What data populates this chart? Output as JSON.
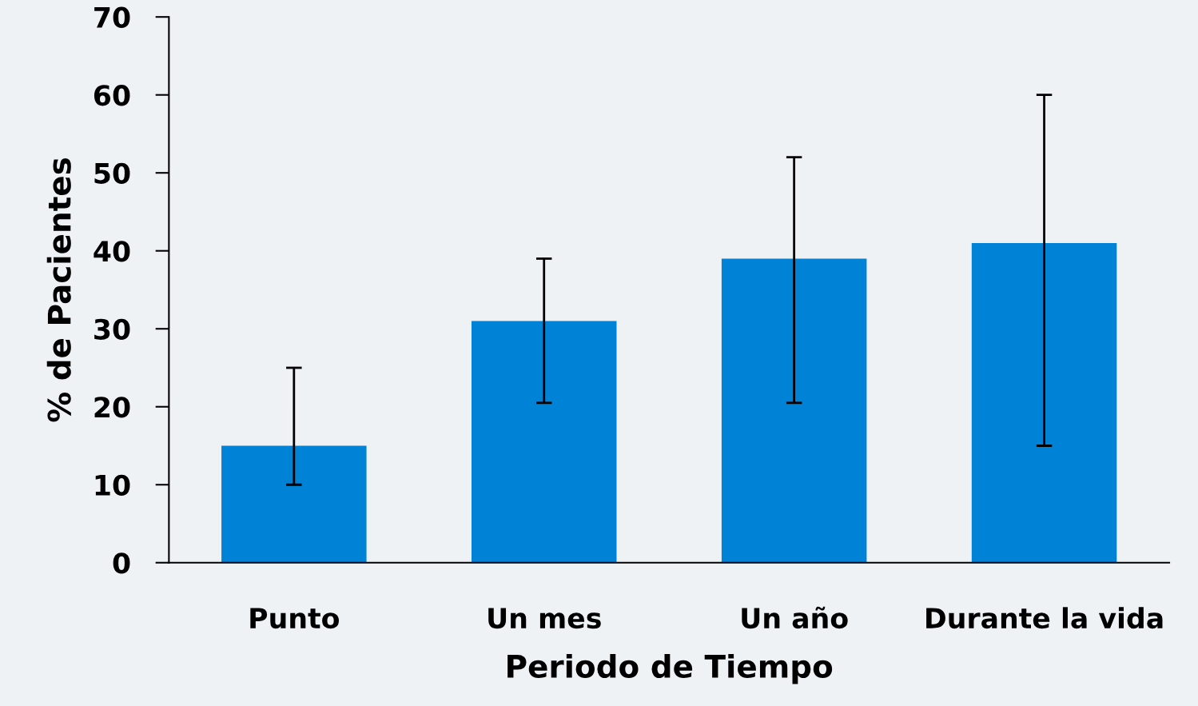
{
  "chart_data": {
    "type": "bar",
    "xlabel": "Periodo de Tiempo",
    "ylabel": "% de Pacientes",
    "categories": [
      "Punto",
      "Un mes",
      "Un año",
      "Durante la vida"
    ],
    "values": [
      15,
      31,
      39,
      41
    ],
    "errors": [
      [
        10,
        25
      ],
      [
        20.5,
        39
      ],
      [
        20.5,
        52
      ],
      [
        15,
        60
      ]
    ],
    "color": "#0082d6",
    "ylim": [
      0,
      70
    ],
    "yticks": [
      0,
      10,
      20,
      30,
      40,
      50,
      60,
      70
    ],
    "grid": false,
    "legend": false
  }
}
